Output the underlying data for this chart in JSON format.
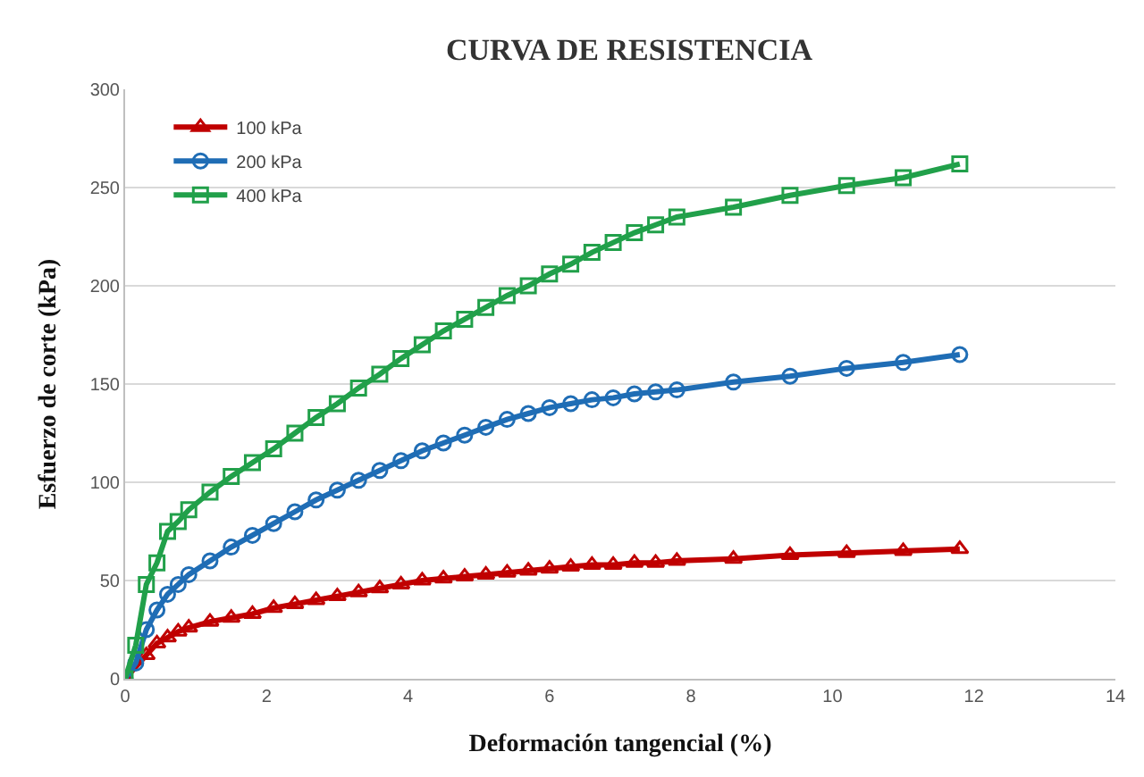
{
  "chart_data": {
    "type": "line",
    "title": "CURVA DE RESISTENCIA",
    "xlabel": "Deformación tangencial (%)",
    "ylabel": "Esfuerzo de corte (kPa)",
    "x": [
      0,
      0.15,
      0.3,
      0.45,
      0.6,
      0.75,
      0.9,
      1.2,
      1.5,
      1.8,
      2.1,
      2.4,
      2.7,
      3.0,
      3.3,
      3.6,
      3.9,
      4.2,
      4.5,
      4.8,
      5.1,
      5.4,
      5.7,
      6.0,
      6.3,
      6.6,
      6.9,
      7.2,
      7.5,
      7.8,
      8.6,
      9.4,
      10.2,
      11.0,
      11.8
    ],
    "series": [
      {
        "name": "100 kPa",
        "color": "#c00000",
        "marker": "triangle",
        "x": [
          0,
          0.3,
          0.45,
          0.6,
          0.75,
          0.9,
          1.2,
          1.5,
          1.8,
          2.1,
          2.4,
          2.7,
          3.0,
          3.3,
          3.6,
          3.9,
          4.2,
          4.5,
          4.8,
          5.1,
          5.4,
          5.7,
          6.0,
          6.3,
          6.6,
          6.9,
          7.2,
          7.5,
          7.8,
          8.6,
          9.4,
          10.2,
          11.0,
          11.8
        ],
        "values": [
          0,
          12,
          18,
          21,
          24,
          26,
          29,
          31,
          33,
          36,
          38,
          40,
          42,
          44,
          46,
          48,
          50,
          51,
          52,
          53,
          54,
          55,
          56,
          57,
          58,
          58,
          59,
          59,
          60,
          61,
          63,
          64,
          65,
          66
        ]
      },
      {
        "name": "200 kPa",
        "color": "#1f6db5",
        "marker": "circle",
        "values": [
          0,
          8,
          25,
          35,
          43,
          48,
          53,
          60,
          67,
          73,
          79,
          85,
          91,
          96,
          101,
          106,
          111,
          116,
          120,
          124,
          128,
          132,
          135,
          138,
          140,
          142,
          143,
          145,
          146,
          147,
          151,
          154,
          158,
          161,
          165
        ]
      },
      {
        "name": "400 kPa",
        "color": "#21a04a",
        "marker": "square",
        "values": [
          0,
          17,
          48,
          59,
          75,
          80,
          86,
          95,
          103,
          110,
          117,
          125,
          133,
          140,
          148,
          155,
          163,
          170,
          177,
          183,
          189,
          195,
          200,
          206,
          211,
          217,
          222,
          227,
          231,
          235,
          240,
          246,
          251,
          255,
          262
        ]
      }
    ],
    "xlim": [
      0,
      14
    ],
    "xticks": [
      0,
      2,
      4,
      6,
      8,
      10,
      12,
      14
    ],
    "ylim": [
      0,
      300
    ],
    "yticks": [
      0,
      50,
      100,
      150,
      200,
      250,
      300
    ],
    "grid": "y",
    "legend": "top left",
    "line_style": "solid"
  }
}
